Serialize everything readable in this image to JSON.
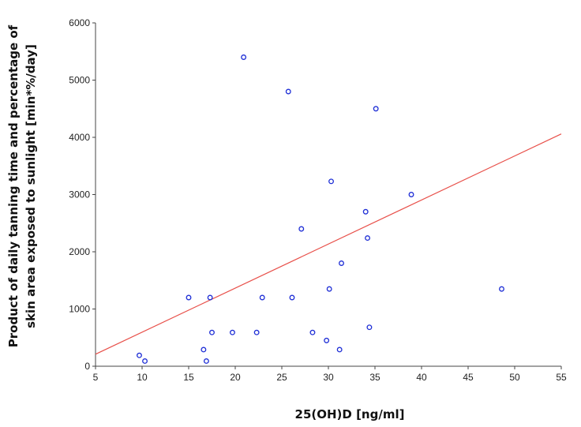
{
  "chart_data": {
    "type": "scatter",
    "xlabel": "25(OH)D [ng/ml]",
    "ylabel_line1": "Product of daily tanning time and percentage of",
    "ylabel_line2": "skin area exposed to sunlight [min*%/day]",
    "xlim": [
      5,
      55
    ],
    "ylim": [
      0,
      6000
    ],
    "xticks": [
      5,
      10,
      15,
      20,
      25,
      30,
      35,
      40,
      45,
      50,
      55
    ],
    "yticks": [
      0,
      1000,
      2000,
      3000,
      4000,
      5000,
      6000
    ],
    "grid": false,
    "points": [
      {
        "x": 9.7,
        "y": 190
      },
      {
        "x": 10.3,
        "y": 90
      },
      {
        "x": 15.0,
        "y": 1200
      },
      {
        "x": 16.6,
        "y": 290
      },
      {
        "x": 16.9,
        "y": 90
      },
      {
        "x": 17.3,
        "y": 1200
      },
      {
        "x": 17.5,
        "y": 590
      },
      {
        "x": 19.7,
        "y": 590
      },
      {
        "x": 20.9,
        "y": 5400
      },
      {
        "x": 22.3,
        "y": 590
      },
      {
        "x": 22.9,
        "y": 1200
      },
      {
        "x": 25.7,
        "y": 4800
      },
      {
        "x": 26.1,
        "y": 1200
      },
      {
        "x": 27.1,
        "y": 2400
      },
      {
        "x": 28.3,
        "y": 590
      },
      {
        "x": 29.8,
        "y": 450
      },
      {
        "x": 30.1,
        "y": 1350
      },
      {
        "x": 30.3,
        "y": 3230
      },
      {
        "x": 31.2,
        "y": 290
      },
      {
        "x": 31.4,
        "y": 1800
      },
      {
        "x": 34.0,
        "y": 2700
      },
      {
        "x": 34.2,
        "y": 2240
      },
      {
        "x": 34.4,
        "y": 680
      },
      {
        "x": 35.1,
        "y": 4500
      },
      {
        "x": 38.9,
        "y": 3000
      },
      {
        "x": 48.6,
        "y": 1350
      }
    ],
    "trend_line": {
      "x": [
        5,
        55
      ],
      "y": [
        210,
        4060
      ]
    },
    "colors": {
      "points": "#1f2fd6",
      "trend_line": "#e8504a",
      "axis": "#444444"
    }
  }
}
